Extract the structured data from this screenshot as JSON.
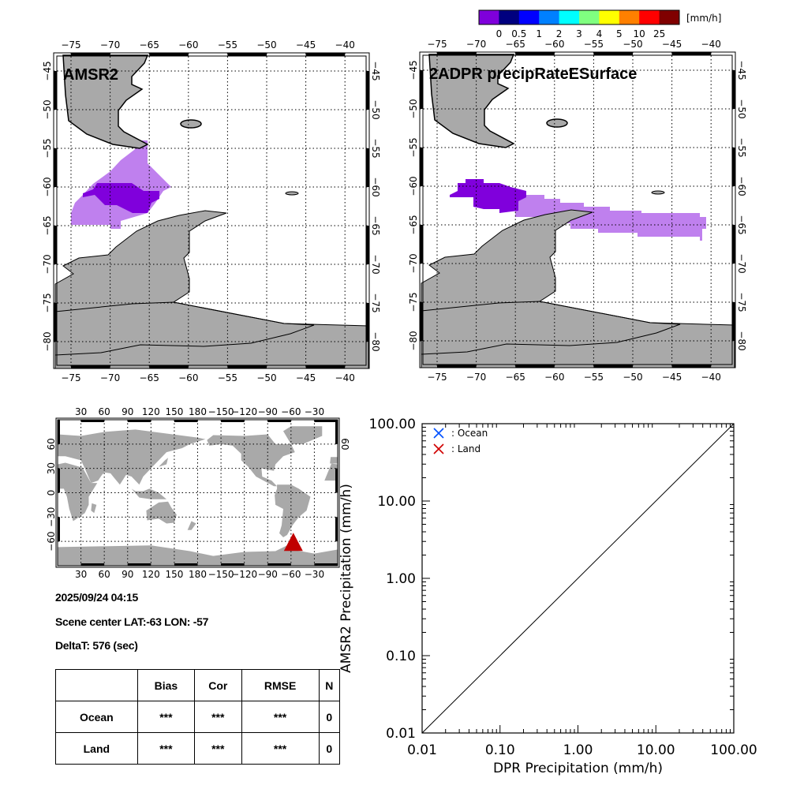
{
  "colorbar": {
    "unit": "[mm/h]",
    "colors": [
      "#7f00db",
      "#00007f",
      "#0000ff",
      "#0080ff",
      "#00ffff",
      "#80ff80",
      "#ffff00",
      "#ff8000",
      "#ff0000",
      "#800000"
    ],
    "labels": [
      "0",
      "0.5",
      "1",
      "2",
      "3",
      "4",
      "5",
      "10",
      "25"
    ]
  },
  "maps": {
    "left_title": "AMSR2",
    "right_title": "2ADPR precipRateESurface",
    "lon_labels": [
      "−75",
      "−70",
      "−65",
      "−60",
      "−55",
      "−50",
      "−45",
      "−40"
    ],
    "lat_labels": [
      "−45",
      "−50",
      "−55",
      "−60",
      "−65",
      "−70",
      "−75",
      "−80"
    ],
    "land_color": "#a9a9a9",
    "precip_light_color": "#bf80ee",
    "precip_dark_color": "#8000dc"
  },
  "globe": {
    "lon_labels": [
      "30",
      "60",
      "90",
      "120",
      "150",
      "180",
      "−150",
      "−120",
      "−90",
      "−60",
      "−30"
    ],
    "lat_labels": [
      "60",
      "30",
      "0",
      "−30",
      "−60"
    ],
    "right_lat_labels": [
      "60"
    ],
    "marker_color": "#c00000"
  },
  "info": {
    "datetime": "2025/09/24 04:15",
    "scene_center": "Scene center LAT:-63   LON: -57",
    "delta_t": "DeltaT:  576 (sec)"
  },
  "stats_table": {
    "headers": [
      "",
      "Bias",
      "Cor",
      "RMSE",
      "N"
    ],
    "rows": [
      {
        "label": "Ocean",
        "bias": "***",
        "cor": "***",
        "rmse": "***",
        "n": "0"
      },
      {
        "label": "Land",
        "bias": "***",
        "cor": "***",
        "rmse": "***",
        "n": "0"
      }
    ]
  },
  "chart_data": {
    "type": "scatter",
    "xlabel": "DPR Precipitation (mm/h)",
    "ylabel": "AMSR2 Precipitation (mm/h)",
    "xscale": "log",
    "yscale": "log",
    "xlim": [
      0.01,
      100
    ],
    "ylim": [
      0.01,
      100
    ],
    "x_tick_labels": [
      "0.01",
      "0.10",
      "1.00",
      "10.00",
      "100.00"
    ],
    "y_tick_labels": [
      "0.01",
      "0.10",
      "1.00",
      "10.00",
      "100.00"
    ],
    "legend_position": "top-left",
    "series": [
      {
        "name": ": Ocean",
        "color": "#0050ff",
        "marker": "x",
        "points": []
      },
      {
        "name": ": Land",
        "color": "#d00000",
        "marker": "x",
        "points": []
      }
    ],
    "reference_line": "1:1"
  }
}
